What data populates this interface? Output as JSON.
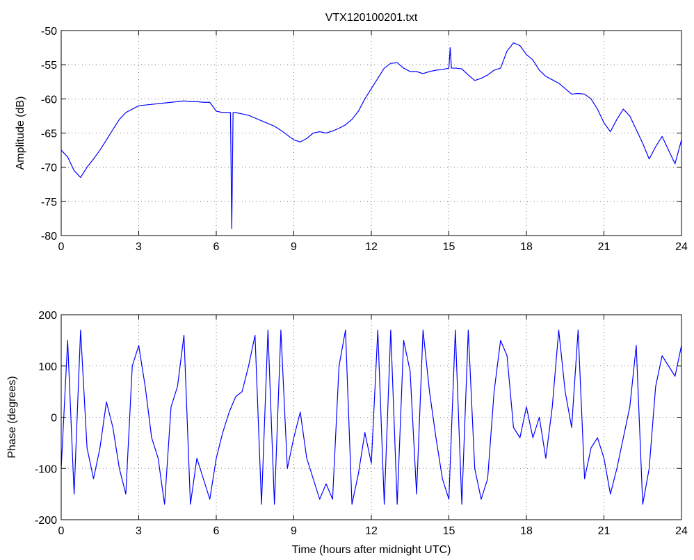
{
  "chart_data": [
    {
      "type": "line",
      "title": "VTX120100201.txt",
      "ylabel": "Amplitude (dB)",
      "color": "#0000ff",
      "grid": true,
      "xlim": [
        0,
        24
      ],
      "xticks": [
        0,
        3,
        6,
        9,
        12,
        15,
        18,
        21,
        24
      ],
      "ylim": [
        -80,
        -50
      ],
      "yticks": [
        -80,
        -75,
        -70,
        -65,
        -60,
        -55,
        -50
      ],
      "x": [
        0,
        0.25,
        0.5,
        0.75,
        1,
        1.25,
        1.5,
        1.75,
        2,
        2.25,
        2.5,
        2.75,
        3,
        3.25,
        3.5,
        3.75,
        4,
        4.25,
        4.5,
        4.75,
        5,
        5.25,
        5.5,
        5.75,
        6,
        6.25,
        6.5,
        6.55,
        6.6,
        6.65,
        6.75,
        7,
        7.25,
        7.5,
        7.75,
        8,
        8.25,
        8.5,
        8.75,
        9,
        9.25,
        9.5,
        9.75,
        10,
        10.25,
        10.5,
        10.75,
        11,
        11.25,
        11.5,
        11.75,
        12,
        12.25,
        12.5,
        12.75,
        13,
        13.25,
        13.5,
        13.75,
        14,
        14.25,
        14.5,
        14.75,
        15,
        15.05,
        15.1,
        15.25,
        15.5,
        15.75,
        16,
        16.25,
        16.5,
        16.75,
        17,
        17.25,
        17.5,
        17.75,
        18,
        18.25,
        18.5,
        18.75,
        19,
        19.25,
        19.5,
        19.75,
        20,
        20.25,
        20.5,
        20.75,
        21,
        21.25,
        21.5,
        21.75,
        22,
        22.25,
        22.5,
        22.75,
        23,
        23.25,
        23.5,
        23.75,
        24
      ],
      "values": [
        -67.5,
        -68.5,
        -70.5,
        -71.5,
        -70,
        -68.8,
        -67.5,
        -66,
        -64.5,
        -63,
        -62,
        -61.5,
        -61,
        -60.9,
        -60.8,
        -60.7,
        -60.6,
        -60.5,
        -60.4,
        -60.3,
        -60.4,
        -60.4,
        -60.5,
        -60.5,
        -61.8,
        -62,
        -62,
        -62,
        -79,
        -62,
        -62,
        -62.2,
        -62.4,
        -62.8,
        -63.2,
        -63.6,
        -64,
        -64.6,
        -65.3,
        -66,
        -66.3,
        -65.8,
        -65,
        -64.8,
        -65,
        -64.7,
        -64.3,
        -63.8,
        -63,
        -61.8,
        -60,
        -58.5,
        -57,
        -55.5,
        -54.8,
        -54.7,
        -55.5,
        -56,
        -56,
        -56.3,
        -56,
        -55.8,
        -55.7,
        -55.5,
        -52.5,
        -55.5,
        -55.5,
        -55.6,
        -56.5,
        -57.3,
        -57,
        -56.5,
        -55.8,
        -55.5,
        -53,
        -51.8,
        -52.2,
        -53.5,
        -54.3,
        -55.8,
        -56.7,
        -57.2,
        -57.7,
        -58.5,
        -59.3,
        -59.2,
        -59.3,
        -60,
        -61.5,
        -63.5,
        -64.8,
        -63,
        -61.5,
        -62.5,
        -64.5,
        -66.5,
        -68.8,
        -67,
        -65.5,
        -67.5,
        -69.5,
        -66
      ]
    },
    {
      "type": "line",
      "ylabel": "Phase (degrees)",
      "xlabel": "Time (hours after midnight UTC)",
      "color": "#0000ff",
      "grid": true,
      "xlim": [
        0,
        24
      ],
      "xticks": [
        0,
        3,
        6,
        9,
        12,
        15,
        18,
        21,
        24
      ],
      "ylim": [
        -200,
        200
      ],
      "yticks": [
        -200,
        -100,
        0,
        100,
        200
      ],
      "x": [
        0,
        0.25,
        0.5,
        0.75,
        1,
        1.25,
        1.5,
        1.75,
        2,
        2.25,
        2.5,
        2.75,
        3,
        3.25,
        3.5,
        3.75,
        4,
        4.25,
        4.5,
        4.75,
        5,
        5.25,
        5.5,
        5.75,
        6,
        6.25,
        6.5,
        6.75,
        7,
        7.25,
        7.5,
        7.75,
        8,
        8.25,
        8.5,
        8.75,
        9,
        9.25,
        9.5,
        9.75,
        10,
        10.25,
        10.5,
        10.75,
        11,
        11.25,
        11.5,
        11.75,
        12,
        12.25,
        12.5,
        12.75,
        13,
        13.25,
        13.5,
        13.75,
        14,
        14.25,
        14.5,
        14.75,
        15,
        15.25,
        15.5,
        15.75,
        16,
        16.25,
        16.5,
        16.75,
        17,
        17.25,
        17.5,
        17.75,
        18,
        18.25,
        18.5,
        18.75,
        19,
        19.25,
        19.5,
        19.75,
        20,
        20.25,
        20.5,
        20.75,
        21,
        21.25,
        21.5,
        21.75,
        22,
        22.25,
        22.5,
        22.75,
        23,
        23.25,
        23.5,
        23.75,
        24
      ],
      "values": [
        -100,
        150,
        -150,
        170,
        -60,
        -120,
        -60,
        30,
        -20,
        -100,
        -150,
        100,
        140,
        60,
        -40,
        -80,
        -170,
        20,
        60,
        160,
        -170,
        -80,
        -120,
        -160,
        -80,
        -30,
        10,
        40,
        50,
        100,
        160,
        -170,
        170,
        -170,
        170,
        -100,
        -40,
        10,
        -80,
        -120,
        -160,
        -130,
        -160,
        100,
        170,
        -170,
        -110,
        -30,
        -90,
        170,
        -170,
        170,
        -170,
        150,
        90,
        -150,
        170,
        50,
        -40,
        -120,
        -160,
        170,
        -170,
        170,
        -100,
        -160,
        -120,
        50,
        150,
        120,
        -20,
        -40,
        20,
        -40,
        0,
        -80,
        20,
        170,
        50,
        -20,
        170,
        -120,
        -60,
        -40,
        -80,
        -150,
        -100,
        -40,
        20,
        140,
        -170,
        -100,
        60,
        120,
        100,
        80,
        140
      ]
    }
  ]
}
